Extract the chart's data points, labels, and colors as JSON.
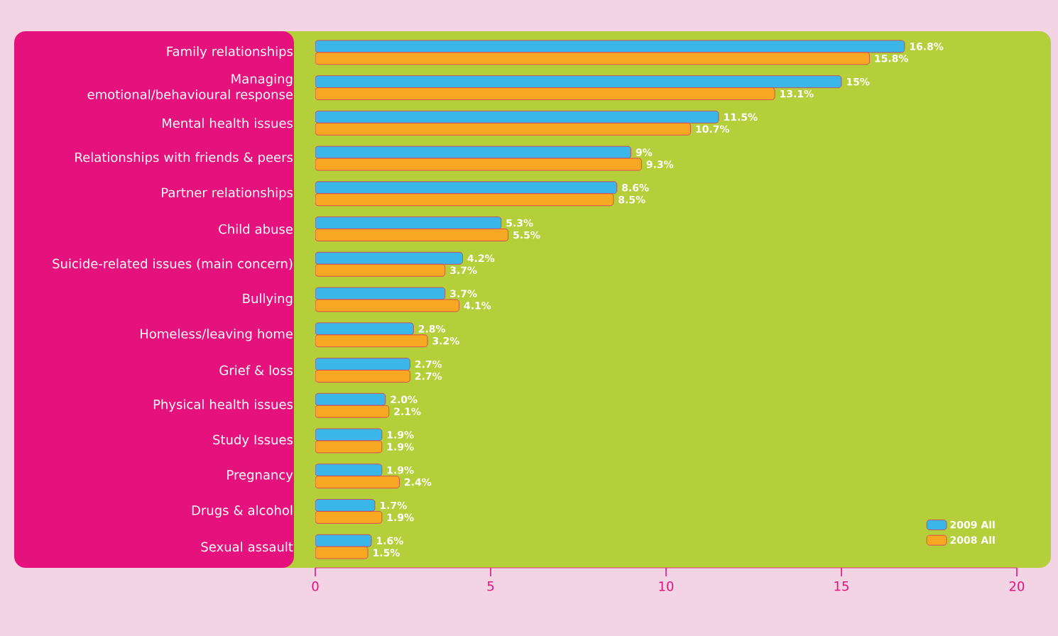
{
  "chart_data": {
    "type": "bar",
    "orientation": "horizontal",
    "categories": [
      "Family relationships",
      "Managing emotional/behavioural response",
      "Mental health issues",
      "Relationships with friends & peers",
      "Partner relationships",
      "Child abuse",
      "Suicide-related issues (main concern)",
      "Bullying",
      "Homeless/leaving home",
      "Grief & loss",
      "Physical health issues",
      "Study Issues",
      "Pregnancy",
      "Drugs & alcohol",
      "Sexual assault"
    ],
    "series": [
      {
        "name": "2009 All",
        "color": "#3bb6e8",
        "values": [
          16.8,
          15,
          11.5,
          9,
          8.6,
          5.3,
          4.2,
          3.7,
          2.8,
          2.7,
          2.0,
          1.9,
          1.9,
          1.7,
          1.6
        ],
        "value_labels": [
          "16.8%",
          "15%",
          "11.5%",
          "9%",
          "8.6%",
          "5.3%",
          "4.2%",
          "3.7%",
          "2.8%",
          "2.7%",
          "2.0%",
          "1.9%",
          "1.9%",
          "1.7%",
          "1.6%"
        ]
      },
      {
        "name": "2008 All",
        "color": "#f7a823",
        "values": [
          15.8,
          13.1,
          10.7,
          9.3,
          8.5,
          5.5,
          3.7,
          4.1,
          3.2,
          2.7,
          2.1,
          1.9,
          2.4,
          1.9,
          1.5
        ],
        "value_labels": [
          "15.8%",
          "13.1%",
          "10.7%",
          "9.3%",
          "8.5%",
          "5.5%",
          "3.7%",
          "4.1%",
          "3.2%",
          "2.7%",
          "2.1%",
          "1.9%",
          "2.4%",
          "1.9%",
          "1.5%"
        ]
      }
    ],
    "xlim": [
      0,
      20
    ],
    "xticks": [
      0,
      5,
      10,
      15,
      20
    ],
    "grid": false,
    "legend": "bottom right"
  }
}
